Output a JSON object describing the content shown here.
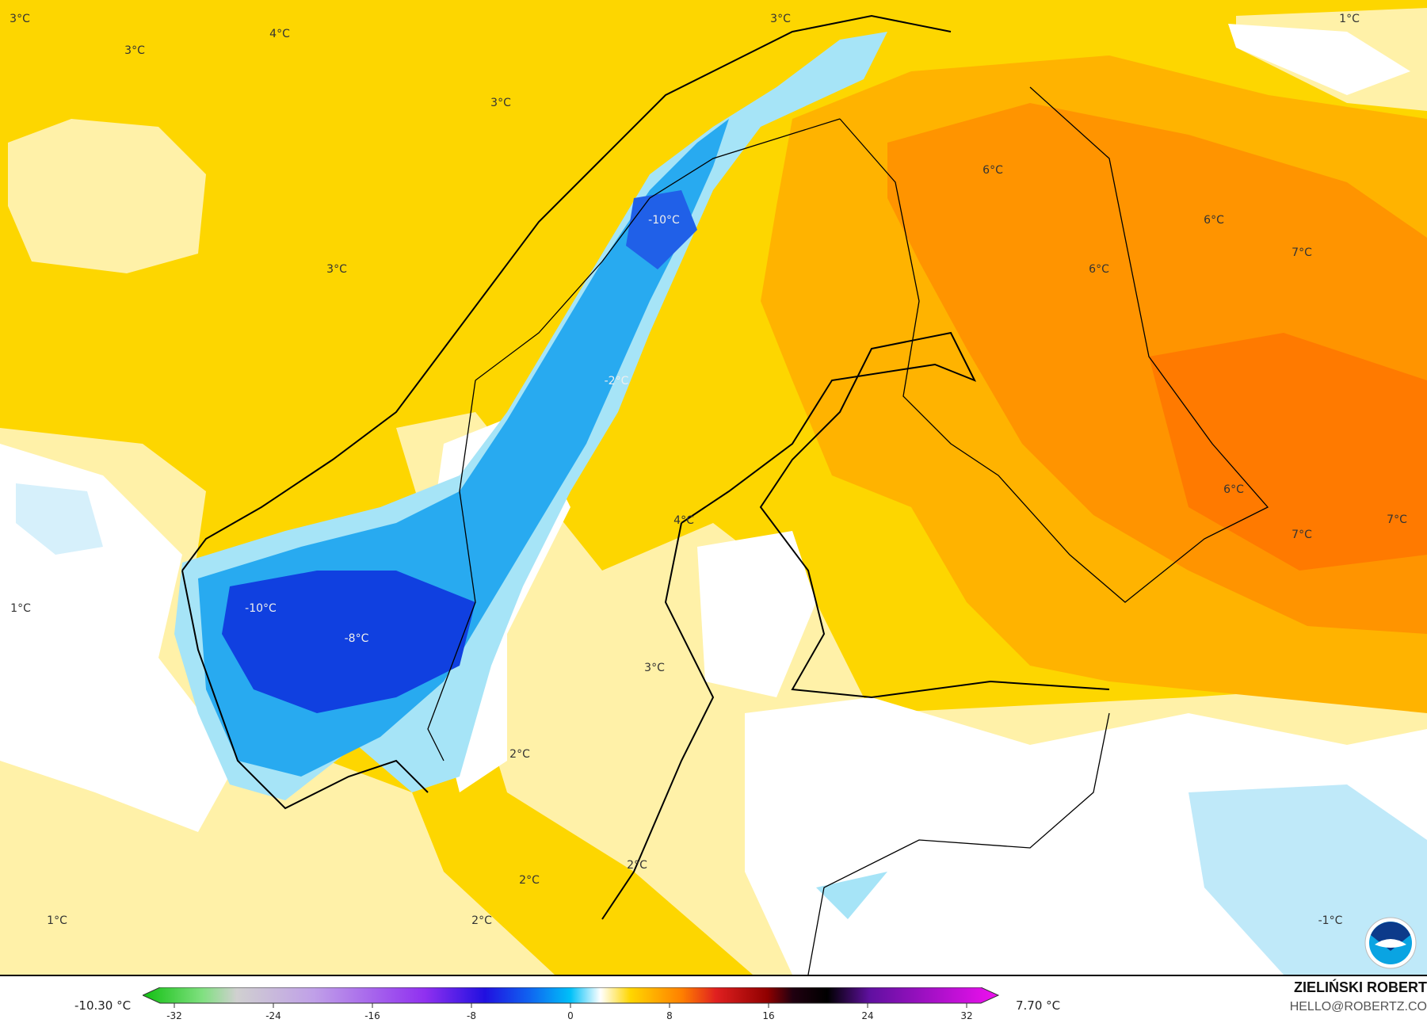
{
  "map": {
    "colors": {
      "base_warm": "#fdd600",
      "light_warm": "#fff1a8",
      "neutral": "#ffffff",
      "orange": "#ffb300",
      "dark_orange": "#ff9400",
      "light_blue": "#9fe0f5",
      "blue": "#22a8ee",
      "dark_blue": "#1040e0"
    },
    "labels": [
      "3°C",
      "3°C",
      "4°C",
      "3°C",
      "3°C",
      "1°C",
      "3°C",
      "6°C",
      "6°C",
      "7°C",
      "6°C",
      "-10°C",
      "-2°C",
      "4°C",
      "6°C",
      "7°C",
      "7°C",
      "1°C",
      "-10°C",
      "-8°C",
      "3°C",
      "2°C",
      "2°C",
      "2°C",
      "2°C",
      "1°C",
      "-1°C"
    ],
    "logo": "NOAA"
  },
  "legend": {
    "min_label": "-10.30 °C",
    "max_label": "7.70 °C",
    "ticks": [
      "-32",
      "-24",
      "-16",
      "-8",
      "0",
      "8",
      "16",
      "24",
      "32"
    ],
    "range": [
      -32,
      32
    ]
  },
  "credit": {
    "author": "ZIELIŃSKI ROBERT",
    "email": "HELLO@ROBERTZ.CO"
  }
}
